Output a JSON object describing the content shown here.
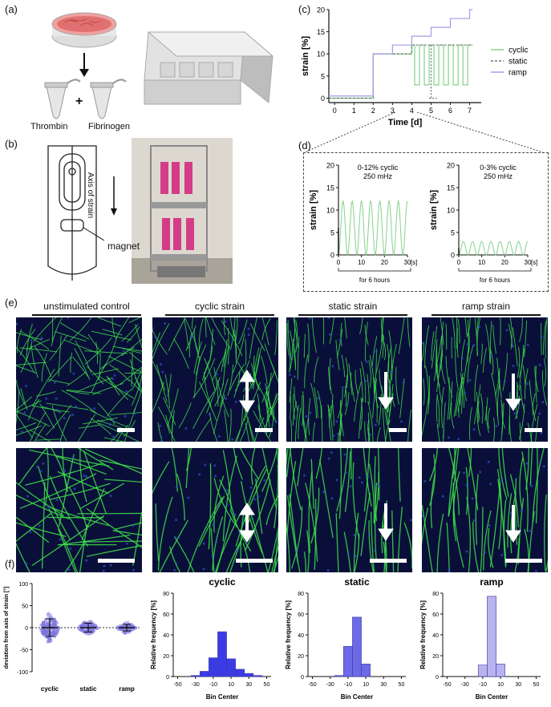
{
  "panel_labels": {
    "a": "(a)",
    "b": "(b)",
    "c": "(c)",
    "d": "(d)",
    "e": "(e)",
    "f": "(f)"
  },
  "panel_a": {
    "tube1_label": "Thrombin",
    "plus": "+",
    "tube2_label": "Fibrinogen"
  },
  "panel_b": {
    "axis_label": "Axis of strain",
    "magnet_label": "magnet"
  },
  "panel_e": {
    "headers": [
      "unstimulated control",
      "cyclic strain",
      "static strain",
      "ramp strain"
    ]
  },
  "colors": {
    "cyclic": "#86d28a",
    "static": "#6b7a6b",
    "ramp": "#a29be6",
    "bar": "#3b3be6",
    "bar_light": "#b9b3f0",
    "fiber": "#3ee04a",
    "bg": "#0a0f3a"
  },
  "chart_data": [
    {
      "id": "panel-c",
      "type": "line",
      "xlabel": "Time [d]",
      "ylabel": "strain [%]",
      "xlim": [
        -0.3,
        7.6
      ],
      "ylim": [
        -1,
        20
      ],
      "xticks": [
        0,
        1,
        2,
        3,
        4,
        5,
        6,
        7
      ],
      "yticks": [
        0,
        5,
        10,
        15,
        20
      ],
      "legend_position": "right",
      "series": [
        {
          "name": "cyclic",
          "x": [
            -0.3,
            2,
            2,
            2.5,
            4,
            4,
            4.15,
            4.15,
            4.4,
            4.4,
            4.65,
            4.65,
            4.9,
            4.9,
            5.15,
            5.15,
            5.4,
            5.4,
            5.65,
            5.65,
            5.9,
            5.9,
            6.15,
            6.15,
            6.4,
            6.4,
            6.65,
            6.65,
            6.9,
            6.9,
            7.15
          ],
          "y": [
            0,
            0,
            10,
            10,
            10,
            12,
            12,
            3,
            3,
            12,
            12,
            3,
            3,
            12,
            12,
            3,
            3,
            12,
            12,
            3,
            3,
            12,
            12,
            3,
            3,
            12,
            12,
            3,
            3,
            12,
            12
          ]
        },
        {
          "name": "static",
          "x": [
            -0.3,
            2,
            2,
            4,
            4,
            7.15
          ],
          "y": [
            0,
            0,
            10,
            10,
            12,
            12
          ]
        },
        {
          "name": "ramp",
          "x": [
            -0.3,
            2,
            2,
            3,
            3,
            4,
            4,
            5,
            5,
            6,
            6,
            7,
            7,
            7.15
          ],
          "y": [
            0.5,
            0.5,
            10,
            10,
            12,
            12,
            14,
            14,
            16,
            16,
            18,
            18,
            20,
            20
          ]
        }
      ]
    },
    {
      "id": "panel-d-left",
      "type": "line",
      "annotation": "0-12% cyclic\n250 mHz",
      "xlabel": "[s]",
      "ylabel": "strain [%]",
      "xlim": [
        0,
        30
      ],
      "ylim": [
        0,
        20
      ],
      "xticks": [
        0,
        10,
        20,
        30
      ],
      "yticks": [
        0,
        5,
        10,
        15,
        20
      ],
      "footer": "for 6 hours",
      "series": [
        {
          "name": "cyclic",
          "amplitude": 12,
          "frequency_hz": 0.25
        }
      ]
    },
    {
      "id": "panel-d-right",
      "type": "line",
      "annotation": "0-3% cyclic\n250 mHz",
      "xlabel": "[s]",
      "ylabel": "strain [%]",
      "xlim": [
        0,
        30
      ],
      "ylim": [
        0,
        20
      ],
      "xticks": [
        0,
        10,
        20,
        30
      ],
      "yticks": [
        0,
        5,
        10,
        15,
        20
      ],
      "footer": "for 6 hours",
      "series": [
        {
          "name": "cyclic",
          "amplitude": 3,
          "frequency_hz": 0.25
        }
      ]
    },
    {
      "id": "panel-f-scatter",
      "type": "scatter",
      "ylabel": "deviation from axis of strain [°]",
      "categories": [
        "cyclic",
        "static",
        "ramp"
      ],
      "ylim": [
        -100,
        100
      ],
      "yticks": [
        -100,
        -50,
        0,
        50,
        100
      ],
      "spread": [
        40,
        20,
        15
      ]
    },
    {
      "id": "panel-f-cyclic",
      "type": "bar",
      "title": "cyclic",
      "xlabel": "Bin Center",
      "ylabel": "Relative frequency [%]",
      "categories": [
        -30,
        -20,
        -10,
        0,
        10,
        20,
        30,
        40
      ],
      "values": [
        1,
        5,
        18,
        43,
        17,
        7,
        3,
        1
      ],
      "xlim": [
        -55,
        55
      ],
      "ylim": [
        0,
        80
      ],
      "xticks": [
        -50,
        -30,
        -10,
        10,
        30,
        50
      ],
      "yticks": [
        0,
        20,
        40,
        60,
        80
      ]
    },
    {
      "id": "panel-f-static",
      "type": "bar",
      "title": "static",
      "xlabel": "Bin Center",
      "ylabel": "Relative frequency [%]",
      "categories": [
        -20,
        -10,
        0,
        10
      ],
      "values": [
        1,
        29,
        57,
        12
      ],
      "xlim": [
        -55,
        55
      ],
      "ylim": [
        0,
        80
      ],
      "xticks": [
        -50,
        -30,
        -10,
        10,
        30,
        50
      ],
      "yticks": [
        0,
        20,
        40,
        60,
        80
      ]
    },
    {
      "id": "panel-f-ramp",
      "type": "bar",
      "title": "ramp",
      "xlabel": "Bin Center",
      "ylabel": "Relative frequency [%]",
      "categories": [
        -10,
        0,
        10
      ],
      "values": [
        11,
        77,
        12
      ],
      "xlim": [
        -55,
        55
      ],
      "ylim": [
        0,
        80
      ],
      "xticks": [
        -50,
        -30,
        -10,
        10,
        30,
        50
      ],
      "yticks": [
        0,
        20,
        40,
        60,
        80
      ]
    }
  ]
}
